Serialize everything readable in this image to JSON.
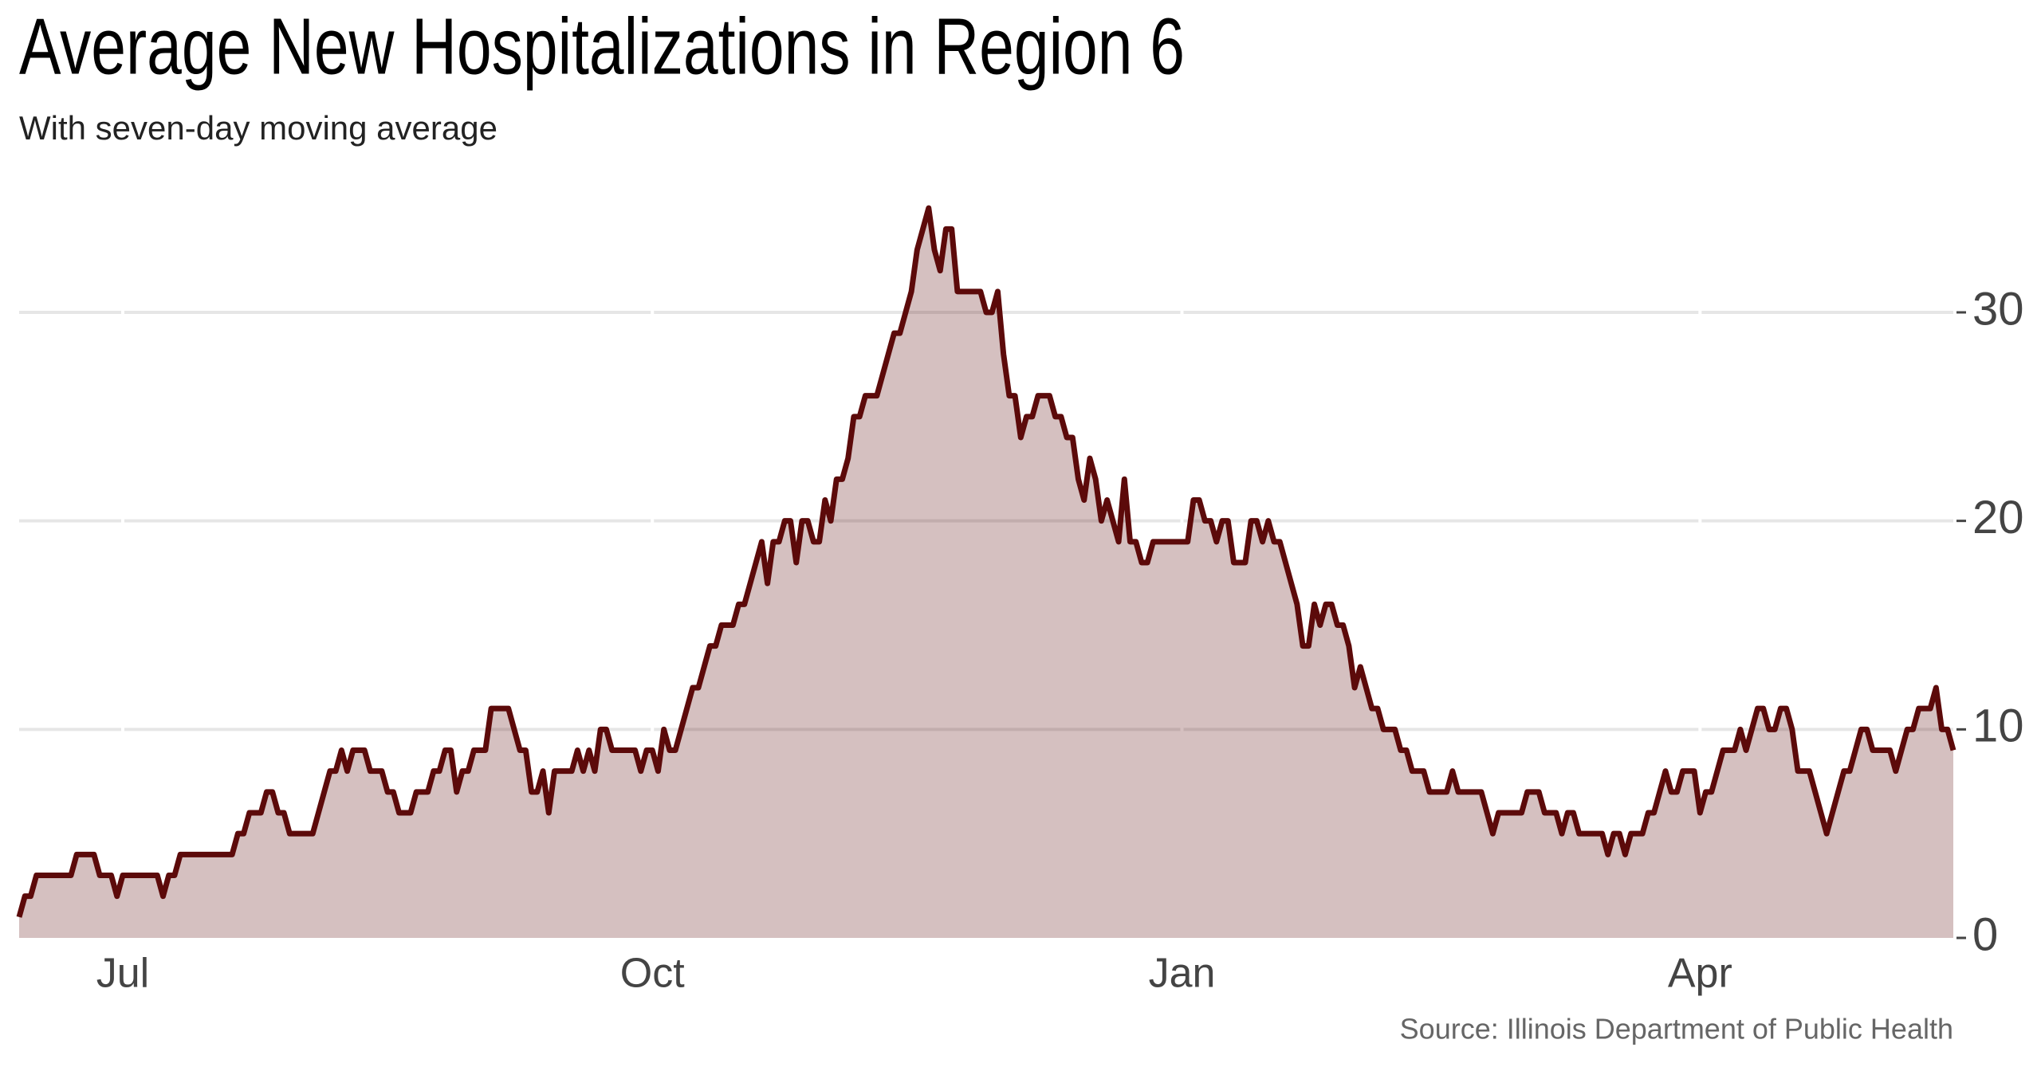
{
  "chart_data": {
    "type": "area",
    "title": "Average New Hospitalizations in Region 6",
    "subtitle": "With seven-day moving average",
    "source": "Source: Illinois Department of Public Health",
    "color": "#5c0a0a",
    "grid": true,
    "ylim": [
      0,
      36
    ],
    "yticks": [
      0,
      10,
      20,
      30
    ],
    "categories": [
      null,
      null,
      null,
      null,
      null,
      null,
      null,
      null,
      null,
      null,
      null,
      null,
      null,
      null,
      null,
      null,
      null,
      null,
      "Jul",
      null,
      null,
      null,
      null,
      null,
      null,
      null,
      null,
      null,
      null,
      null,
      null,
      null,
      null,
      null,
      null,
      null,
      null,
      null,
      null,
      null,
      null,
      null,
      null,
      null,
      null,
      null,
      null,
      null,
      null,
      null,
      null,
      null,
      null,
      null,
      null,
      null,
      null,
      null,
      null,
      null,
      null,
      null,
      null,
      null,
      null,
      null,
      null,
      null,
      null,
      null,
      null,
      null,
      null,
      null,
      null,
      null,
      null,
      null,
      null,
      null,
      null,
      null,
      null,
      null,
      null,
      null,
      null,
      null,
      null,
      null,
      null,
      null,
      null,
      null,
      null,
      null,
      null,
      null,
      null,
      null,
      null,
      null,
      null,
      null,
      null,
      null,
      null,
      null,
      null,
      null,
      "Oct",
      null,
      null,
      null,
      null,
      null,
      null,
      null,
      null,
      null,
      null,
      null,
      null,
      null,
      null,
      null,
      null,
      null,
      null,
      null,
      null,
      null,
      null,
      null,
      null,
      null,
      null,
      null,
      null,
      null,
      null,
      null,
      null,
      null,
      null,
      null,
      null,
      null,
      null,
      null,
      null,
      null,
      null,
      null,
      null,
      null,
      null,
      null,
      null,
      null,
      null,
      null,
      null,
      null,
      null,
      null,
      null,
      null,
      null,
      null,
      null,
      null,
      null,
      null,
      null,
      null,
      null,
      null,
      null,
      null,
      null,
      null,
      null,
      null,
      null,
      null,
      null,
      null,
      null,
      null,
      null,
      null,
      null,
      null,
      null,
      null,
      null,
      null,
      null,
      null,
      null,
      null,
      "Jan",
      null,
      null,
      null,
      null,
      null,
      null,
      null,
      null,
      null,
      null,
      null,
      null,
      null,
      null,
      null,
      null,
      null,
      null,
      null,
      null,
      null,
      null,
      null,
      null,
      null,
      null,
      null,
      null,
      null,
      null,
      null,
      null,
      null,
      null,
      null,
      null,
      null,
      null,
      null,
      null,
      null,
      null,
      null,
      null,
      null,
      null,
      null,
      null,
      null,
      null,
      null,
      null,
      null,
      null,
      null,
      null,
      null,
      null,
      null,
      null,
      null,
      null,
      null,
      null,
      null,
      null,
      null,
      null,
      null,
      null,
      null,
      null,
      null,
      null,
      null,
      null,
      null,
      null,
      null,
      null,
      null,
      null,
      null,
      null,
      null,
      null,
      null,
      null,
      null,
      "Apr",
      null,
      null,
      null,
      null,
      null,
      null,
      null,
      null,
      null,
      null,
      null,
      null,
      null,
      null,
      null,
      null,
      null,
      null,
      null,
      null,
      null,
      null,
      null,
      null,
      null,
      null,
      null,
      null,
      null,
      null,
      null,
      null,
      null,
      null,
      null,
      null,
      null,
      null,
      null,
      null,
      null,
      null,
      null,
      null
    ],
    "values": [
      1,
      2,
      2,
      3,
      3,
      3,
      3,
      3,
      3,
      3,
      4,
      4,
      4,
      4,
      3,
      3,
      3,
      2,
      3,
      3,
      3,
      3,
      3,
      3,
      3,
      2,
      3,
      3,
      4,
      4,
      4,
      4,
      4,
      4,
      4,
      4,
      4,
      4,
      5,
      5,
      6,
      6,
      6,
      7,
      7,
      6,
      6,
      5,
      5,
      5,
      5,
      5,
      6,
      7,
      8,
      8,
      9,
      8,
      9,
      9,
      9,
      8,
      8,
      8,
      7,
      7,
      6,
      6,
      6,
      7,
      7,
      7,
      8,
      8,
      9,
      9,
      7,
      8,
      8,
      9,
      9,
      9,
      11,
      11,
      11,
      11,
      10,
      9,
      9,
      7,
      7,
      8,
      6,
      8,
      8,
      8,
      8,
      9,
      8,
      9,
      8,
      10,
      10,
      9,
      9,
      9,
      9,
      9,
      8,
      9,
      9,
      8,
      10,
      9,
      9,
      10,
      11,
      12,
      12,
      13,
      14,
      14,
      15,
      15,
      15,
      16,
      16,
      17,
      18,
      19,
      17,
      19,
      19,
      20,
      20,
      18,
      20,
      20,
      19,
      19,
      21,
      20,
      22,
      22,
      23,
      25,
      25,
      26,
      26,
      26,
      27,
      28,
      29,
      29,
      30,
      31,
      33,
      34,
      35,
      33,
      32,
      34,
      34,
      31,
      31,
      31,
      31,
      31,
      30,
      30,
      31,
      28,
      26,
      26,
      24,
      25,
      25,
      26,
      26,
      26,
      25,
      25,
      24,
      24,
      22,
      21,
      23,
      22,
      20,
      21,
      20,
      19,
      22,
      19,
      19,
      18,
      18,
      19,
      19,
      19,
      19,
      19,
      19,
      19,
      21,
      21,
      20,
      20,
      19,
      20,
      20,
      18,
      18,
      18,
      20,
      20,
      19,
      20,
      19,
      19,
      18,
      17,
      16,
      14,
      14,
      16,
      15,
      16,
      16,
      15,
      15,
      14,
      12,
      13,
      12,
      11,
      11,
      10,
      10,
      10,
      9,
      9,
      8,
      8,
      8,
      7,
      7,
      7,
      7,
      8,
      7,
      7,
      7,
      7,
      7,
      6,
      5,
      6,
      6,
      6,
      6,
      6,
      7,
      7,
      7,
      6,
      6,
      6,
      5,
      6,
      6,
      5,
      5,
      5,
      5,
      5,
      4,
      5,
      5,
      4,
      5,
      5,
      5,
      6,
      6,
      7,
      8,
      7,
      7,
      8,
      8,
      8,
      6,
      7,
      7,
      8,
      9,
      9,
      9,
      10,
      9,
      10,
      11,
      11,
      10,
      10,
      11,
      11,
      10,
      8,
      8,
      8,
      7,
      6,
      5,
      6,
      7,
      8,
      8,
      9,
      10,
      10,
      9,
      9,
      9,
      9,
      8,
      9,
      10,
      10,
      11,
      11,
      11,
      12,
      10,
      10,
      9
    ]
  }
}
